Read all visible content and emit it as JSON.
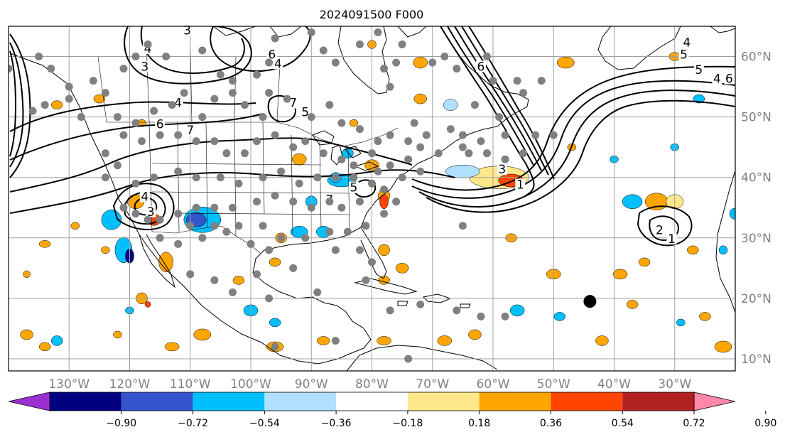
{
  "title": "2024091500 F000",
  "map": {
    "lon_range": [
      -140,
      -20
    ],
    "lat_range": [
      8,
      65
    ],
    "lon_ticks": [
      {
        "lon": -130,
        "label": "130°W"
      },
      {
        "lon": -120,
        "label": "120°W"
      },
      {
        "lon": -110,
        "label": "110°W"
      },
      {
        "lon": -100,
        "label": "100°W"
      },
      {
        "lon": -90,
        "label": "90°W"
      },
      {
        "lon": -80,
        "label": "80°W"
      },
      {
        "lon": -70,
        "label": "70°W"
      },
      {
        "lon": -60,
        "label": "60°W"
      },
      {
        "lon": -50,
        "label": "50°W"
      },
      {
        "lon": -40,
        "label": "40°W"
      },
      {
        "lon": -30,
        "label": "30°W"
      }
    ],
    "lat_ticks": [
      {
        "lat": 10,
        "label": "10°N"
      },
      {
        "lat": 20,
        "label": "20°N"
      },
      {
        "lat": 30,
        "label": "30°N"
      },
      {
        "lat": 40,
        "label": "40°N"
      },
      {
        "lat": 50,
        "label": "50°N"
      },
      {
        "lat": 60,
        "label": "60°N"
      }
    ],
    "grid": true,
    "gridline_color": "#a0a0a0",
    "land_line_color": "#000000"
  },
  "colorbar": {
    "colors": [
      "#9b30d0",
      "#000080",
      "#3355cc",
      "#00bfff",
      "#b0e0ff",
      "#ffffff",
      "#ffe88a",
      "#ffa500",
      "#ff4500",
      "#b22222",
      "#ff88aa"
    ],
    "tick_labels": [
      "−0.90",
      "−0.72",
      "−0.54",
      "−0.36",
      "−0.18",
      "0.18",
      "0.36",
      "0.54",
      "0.72",
      "0.90"
    ],
    "extend": "both"
  },
  "contours": {
    "labels": [
      {
        "text": "1",
        "lon": -55.5,
        "lat": 38.5
      },
      {
        "text": "3",
        "lon": -58.5,
        "lat": 41
      },
      {
        "text": "2",
        "lon": -32.5,
        "lat": 31
      },
      {
        "text": "1",
        "lon": -30.5,
        "lat": 29.5
      },
      {
        "text": "4",
        "lon": -28,
        "lat": 62
      },
      {
        "text": "5",
        "lon": -28.5,
        "lat": 60
      },
      {
        "text": "5",
        "lon": -26,
        "lat": 57.5
      },
      {
        "text": "4",
        "lon": -23,
        "lat": 56
      },
      {
        "text": "6",
        "lon": -21,
        "lat": 56
      },
      {
        "text": "4",
        "lon": -112,
        "lat": 52
      },
      {
        "text": "6",
        "lon": -115,
        "lat": 48.5
      },
      {
        "text": "7",
        "lon": -110,
        "lat": 47.5
      },
      {
        "text": "6",
        "lon": -96.5,
        "lat": 60
      },
      {
        "text": "4",
        "lon": -95.5,
        "lat": 58.5
      },
      {
        "text": "4",
        "lon": -117.5,
        "lat": 36.5
      },
      {
        "text": "3",
        "lon": -116.5,
        "lat": 34
      },
      {
        "text": "5",
        "lon": -83,
        "lat": 38
      },
      {
        "text": "7",
        "lon": -87,
        "lat": 36
      },
      {
        "text": "3",
        "lon": -110.5,
        "lat": 64
      },
      {
        "text": "4",
        "lon": -117,
        "lat": 61
      },
      {
        "text": "3",
        "lon": -117.5,
        "lat": 58
      },
      {
        "text": "7",
        "lon": -93,
        "lat": 52
      },
      {
        "text": "5",
        "lon": -91,
        "lat": 50.5
      },
      {
        "text": "6",
        "lon": -62,
        "lat": 58
      }
    ]
  },
  "stations": [
    [
      -140,
      58
    ],
    [
      -135,
      60
    ],
    [
      -133,
      58
    ],
    [
      -130,
      55
    ],
    [
      -126,
      56
    ],
    [
      -121,
      58
    ],
    [
      -119,
      60
    ],
    [
      -117,
      62
    ],
    [
      -114,
      60
    ],
    [
      -108,
      61
    ],
    [
      -105,
      57
    ],
    [
      -103,
      56
    ],
    [
      -99,
      57
    ],
    [
      -97,
      59
    ],
    [
      -96,
      63
    ],
    [
      -90,
      64
    ],
    [
      -88,
      61
    ],
    [
      -86,
      59
    ],
    [
      -82,
      62
    ],
    [
      -79,
      64
    ],
    [
      -75,
      62
    ],
    [
      -76,
      59
    ],
    [
      -78,
      58
    ],
    [
      -77,
      55
    ],
    [
      -70,
      59
    ],
    [
      -68,
      60
    ],
    [
      -66,
      58
    ],
    [
      -61,
      60
    ],
    [
      -56,
      56
    ],
    [
      -52,
      56
    ],
    [
      -60,
      56
    ],
    [
      -55,
      54
    ],
    [
      -63,
      52
    ],
    [
      -59,
      50
    ],
    [
      -73,
      49
    ],
    [
      -71,
      47
    ],
    [
      -67,
      48
    ],
    [
      -65,
      47
    ],
    [
      -62,
      46
    ],
    [
      -58,
      47
    ],
    [
      -65,
      45
    ],
    [
      -61,
      44
    ],
    [
      -64,
      44
    ],
    [
      -58,
      43
    ],
    [
      -55,
      44
    ],
    [
      -50,
      47
    ],
    [
      -53,
      47
    ],
    [
      -136,
      51
    ],
    [
      -134,
      52
    ],
    [
      -130,
      53
    ],
    [
      -128,
      50
    ],
    [
      -124,
      54
    ],
    [
      -122,
      50
    ],
    [
      -119,
      49
    ],
    [
      -116,
      51
    ],
    [
      -113,
      52
    ],
    [
      -111,
      54
    ],
    [
      -108,
      50
    ],
    [
      -106,
      53
    ],
    [
      -103,
      54
    ],
    [
      -101,
      52
    ],
    [
      -98,
      50
    ],
    [
      -97,
      54
    ],
    [
      -94,
      53
    ],
    [
      -90,
      50
    ],
    [
      -87,
      52
    ],
    [
      -85,
      49
    ],
    [
      -82,
      48
    ],
    [
      -79,
      46
    ],
    [
      -77,
      47
    ],
    [
      -74,
      46
    ],
    [
      -72,
      45
    ],
    [
      -69,
      44
    ],
    [
      -80,
      44
    ],
    [
      -83,
      42
    ],
    [
      -85,
      43
    ],
    [
      -88,
      44
    ],
    [
      -91,
      46
    ],
    [
      -93,
      45
    ],
    [
      -96,
      47
    ],
    [
      -99,
      46
    ],
    [
      -101,
      44
    ],
    [
      -104,
      44
    ],
    [
      -106,
      46
    ],
    [
      -109,
      46
    ],
    [
      -112,
      47
    ],
    [
      -115,
      47
    ],
    [
      -118,
      46
    ],
    [
      -121,
      47
    ],
    [
      -124,
      44
    ],
    [
      -122,
      42
    ],
    [
      -119,
      39
    ],
    [
      -116,
      40
    ],
    [
      -112,
      41
    ],
    [
      -109,
      40
    ],
    [
      -105,
      40
    ],
    [
      -102,
      39
    ],
    [
      -98,
      40
    ],
    [
      -95,
      41
    ],
    [
      -92,
      39
    ],
    [
      -89,
      40
    ],
    [
      -86,
      40
    ],
    [
      -83,
      40
    ],
    [
      -80,
      39
    ],
    [
      -78,
      38
    ],
    [
      -75,
      40
    ],
    [
      -72,
      41
    ],
    [
      -74,
      43
    ],
    [
      -77,
      42
    ],
    [
      -79,
      41
    ],
    [
      -82,
      36
    ],
    [
      -85,
      35
    ],
    [
      -87,
      36
    ],
    [
      -90,
      35
    ],
    [
      -93,
      36
    ],
    [
      -96,
      37
    ],
    [
      -99,
      36
    ],
    [
      -103,
      35
    ],
    [
      -106,
      35
    ],
    [
      -109,
      35
    ],
    [
      -112,
      34
    ],
    [
      -115,
      33
    ],
    [
      -117,
      33
    ],
    [
      -119,
      34
    ],
    [
      -121,
      35
    ],
    [
      -124,
      40
    ],
    [
      -110,
      32
    ],
    [
      -106,
      32
    ],
    [
      -102,
      32
    ],
    [
      -98,
      32
    ],
    [
      -95,
      30
    ],
    [
      -91,
      30
    ],
    [
      -87,
      31
    ],
    [
      -84,
      31
    ],
    [
      -81,
      32
    ],
    [
      -78,
      34
    ],
    [
      -76,
      36
    ],
    [
      -82,
      28
    ],
    [
      -80,
      26
    ],
    [
      -86,
      28
    ],
    [
      -97,
      28
    ],
    [
      -100,
      29
    ],
    [
      -104,
      31
    ],
    [
      -108,
      30
    ],
    [
      -112,
      29
    ],
    [
      -115,
      30
    ],
    [
      -110,
      24
    ],
    [
      -106,
      23
    ],
    [
      -103,
      21
    ],
    [
      -99,
      24
    ],
    [
      -97,
      20
    ],
    [
      -93,
      25
    ],
    [
      -89,
      21
    ],
    [
      -81,
      23
    ],
    [
      -77,
      18
    ],
    [
      -72,
      19
    ],
    [
      -66,
      18
    ],
    [
      -62,
      17
    ],
    [
      -58,
      17
    ],
    [
      -96,
      12
    ],
    [
      -86,
      13
    ],
    [
      -74,
      10
    ],
    [
      -65,
      32
    ]
  ],
  "marker": {
    "lon": -44,
    "lat": 19.5,
    "color": "#000000"
  }
}
